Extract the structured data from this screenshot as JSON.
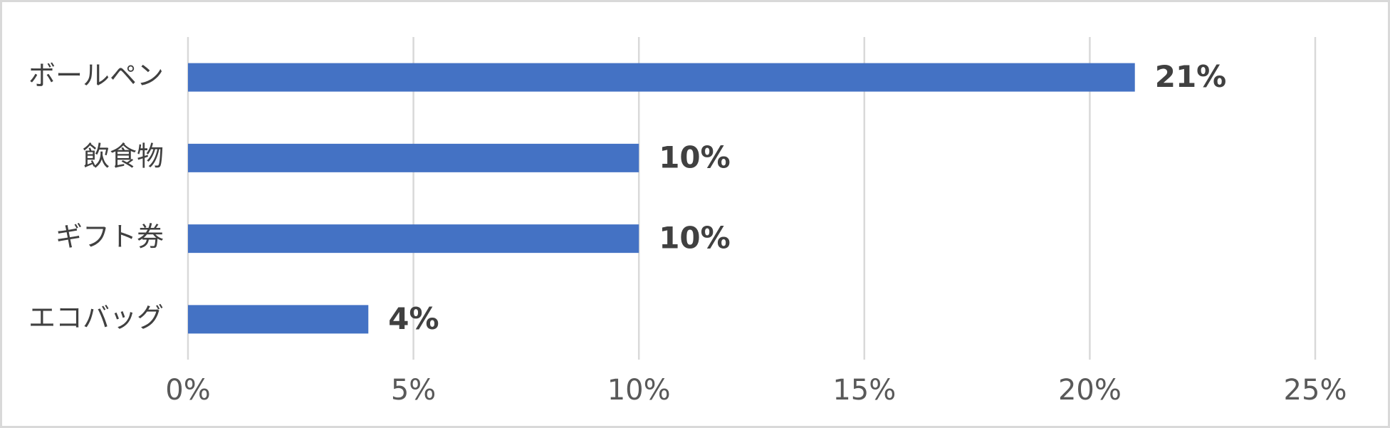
{
  "chart_data": {
    "type": "barh",
    "categories": [
      "ボールペン",
      "飲食物",
      "ギフト券",
      "エコバッグ"
    ],
    "values": [
      21,
      10,
      10,
      4
    ],
    "value_labels": [
      "21%",
      "10%",
      "10%",
      "4%"
    ],
    "color": "#4472c4",
    "xlim": [
      0,
      25
    ],
    "xticks": [
      {
        "value": 0,
        "label": "0%"
      },
      {
        "value": 5,
        "label": "5%"
      },
      {
        "value": 10,
        "label": "10%"
      },
      {
        "value": 15,
        "label": "15%"
      },
      {
        "value": 20,
        "label": "20%"
      },
      {
        "value": 25,
        "label": "25%"
      }
    ],
    "grid": true
  }
}
